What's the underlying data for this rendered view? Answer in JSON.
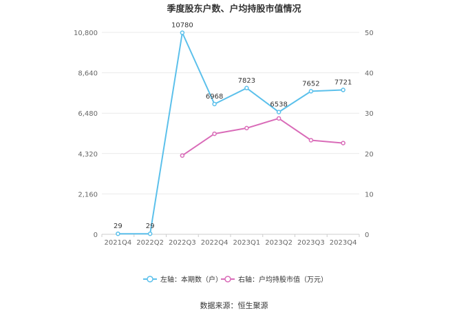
{
  "chart_data": {
    "type": "line",
    "title": "季度股东户数、户均持股市值情况",
    "categories": [
      "2021Q4",
      "2022Q2",
      "2022Q3",
      "2022Q4",
      "2023Q1",
      "2023Q2",
      "2023Q3",
      "2023Q4"
    ],
    "left_axis": {
      "ticks": [
        "0",
        "2,160",
        "4,320",
        "6,480",
        "8,640",
        "10,800"
      ],
      "ylim": [
        0,
        10800
      ]
    },
    "right_axis": {
      "ticks": [
        "0",
        "10",
        "20",
        "30",
        "40",
        "50"
      ],
      "ylim": [
        0,
        50
      ]
    },
    "series": [
      {
        "name": "左轴：本期数（户）",
        "axis": "left",
        "color": "#5bc0eb",
        "values": [
          29,
          29,
          10780,
          6968,
          7823,
          6538,
          7652,
          7721
        ],
        "labels": [
          "29",
          "29",
          "10780",
          "6968",
          "7823",
          "6538",
          "7652",
          "7721"
        ]
      },
      {
        "name": "右轴：户均持股市值（万元）",
        "axis": "right",
        "color": "#d96bb8",
        "values": [
          null,
          null,
          19.5,
          24.9,
          26.3,
          28.7,
          23.3,
          22.6
        ]
      }
    ],
    "grid": true,
    "legend": "bottom",
    "source": "数据来源：恒生聚源"
  }
}
